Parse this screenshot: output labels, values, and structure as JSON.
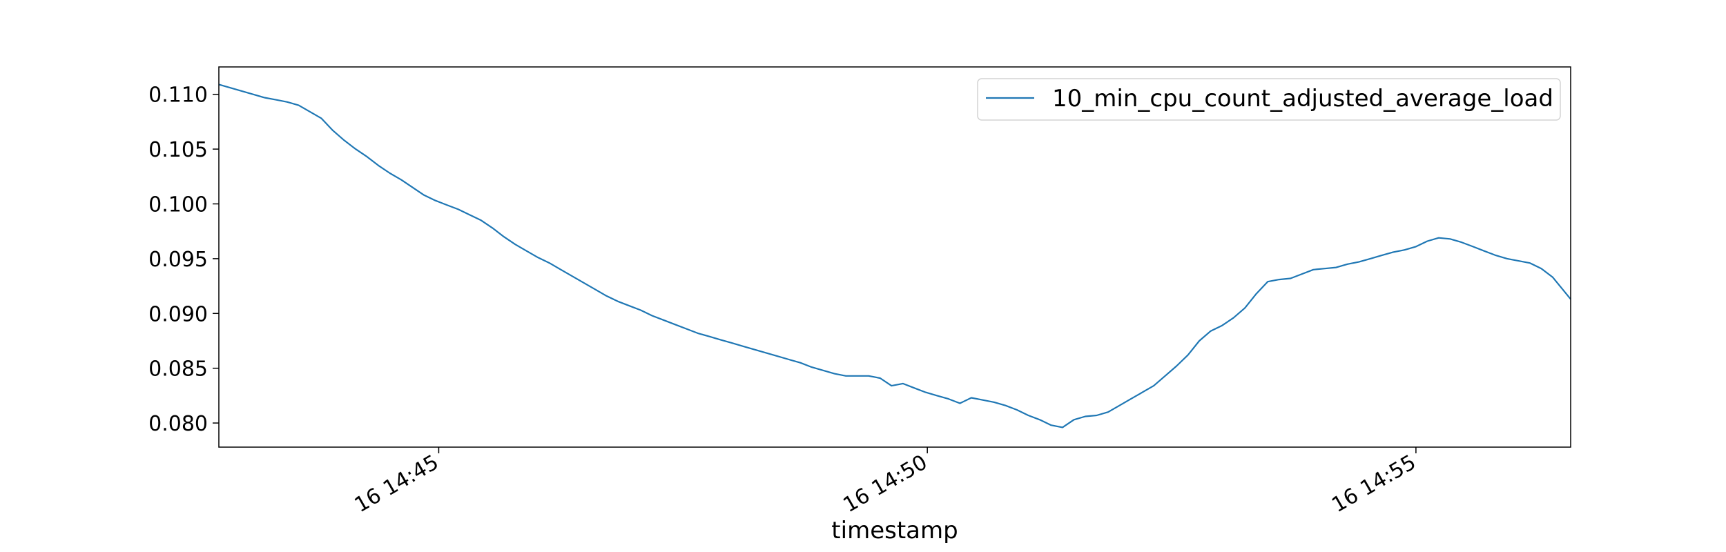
{
  "chart_data": {
    "type": "line",
    "title": "",
    "xlabel": "timestamp",
    "ylabel": "",
    "x_range": [
      "14:42:45",
      "14:56:35"
    ],
    "ylim": [
      0.0778,
      0.1125
    ],
    "x_ticks": [
      {
        "time": "14:45:00",
        "label": "16 14:45"
      },
      {
        "time": "14:50:00",
        "label": "16 14:50"
      },
      {
        "time": "14:55:00",
        "label": "16 14:55"
      }
    ],
    "y_ticks": [
      {
        "value": 0.08,
        "label": "0.080"
      },
      {
        "value": 0.085,
        "label": "0.085"
      },
      {
        "value": 0.09,
        "label": "0.090"
      },
      {
        "value": 0.095,
        "label": "0.095"
      },
      {
        "value": 0.1,
        "label": "0.100"
      },
      {
        "value": 0.105,
        "label": "0.105"
      },
      {
        "value": 0.11,
        "label": "0.110"
      }
    ],
    "grid": false,
    "legend_position": "top-right",
    "series": [
      {
        "name": "10_min_cpu_count_adjusted_average_load",
        "color": "#1f77b4",
        "points": [
          [
            "14:42:45",
            0.1109
          ],
          [
            "14:42:52",
            0.1106
          ],
          [
            "14:42:59",
            0.1103
          ],
          [
            "14:43:06",
            0.11
          ],
          [
            "14:43:13",
            0.1097
          ],
          [
            "14:43:20",
            0.1095
          ],
          [
            "14:43:27",
            0.1093
          ],
          [
            "14:43:34",
            0.109
          ],
          [
            "14:43:41",
            0.1084
          ],
          [
            "14:43:48",
            0.1078
          ],
          [
            "14:43:55",
            0.1067
          ],
          [
            "14:44:02",
            0.1058
          ],
          [
            "14:44:09",
            0.105
          ],
          [
            "14:44:16",
            0.1043
          ],
          [
            "14:44:23",
            0.1035
          ],
          [
            "14:44:30",
            0.1028
          ],
          [
            "14:44:37",
            0.1022
          ],
          [
            "14:44:44",
            0.1015
          ],
          [
            "14:44:51",
            0.1008
          ],
          [
            "14:44:58",
            0.1003
          ],
          [
            "14:45:05",
            0.0999
          ],
          [
            "14:45:12",
            0.0995
          ],
          [
            "14:45:19",
            0.099
          ],
          [
            "14:45:26",
            0.0985
          ],
          [
            "14:45:33",
            0.0978
          ],
          [
            "14:45:40",
            0.097
          ],
          [
            "14:45:47",
            0.0963
          ],
          [
            "14:45:54",
            0.0957
          ],
          [
            "14:46:01",
            0.0951
          ],
          [
            "14:46:08",
            0.0946
          ],
          [
            "14:46:15",
            0.094
          ],
          [
            "14:46:22",
            0.0934
          ],
          [
            "14:46:29",
            0.0928
          ],
          [
            "14:46:36",
            0.0922
          ],
          [
            "14:46:43",
            0.0916
          ],
          [
            "14:46:50",
            0.0911
          ],
          [
            "14:46:57",
            0.0907
          ],
          [
            "14:47:04",
            0.0903
          ],
          [
            "14:47:11",
            0.0898
          ],
          [
            "14:47:18",
            0.0894
          ],
          [
            "14:47:25",
            0.089
          ],
          [
            "14:47:32",
            0.0886
          ],
          [
            "14:47:39",
            0.0882
          ],
          [
            "14:47:46",
            0.0879
          ],
          [
            "14:47:53",
            0.0876
          ],
          [
            "14:48:00",
            0.0873
          ],
          [
            "14:48:07",
            0.087
          ],
          [
            "14:48:14",
            0.0867
          ],
          [
            "14:48:21",
            0.0864
          ],
          [
            "14:48:28",
            0.0861
          ],
          [
            "14:48:35",
            0.0858
          ],
          [
            "14:48:42",
            0.0855
          ],
          [
            "14:48:49",
            0.0851
          ],
          [
            "14:48:56",
            0.0848
          ],
          [
            "14:49:03",
            0.0845
          ],
          [
            "14:49:10",
            0.0843
          ],
          [
            "14:49:17",
            0.0843
          ],
          [
            "14:49:24",
            0.0843
          ],
          [
            "14:49:31",
            0.0841
          ],
          [
            "14:49:38",
            0.0834
          ],
          [
            "14:49:45",
            0.0836
          ],
          [
            "14:49:52",
            0.0832
          ],
          [
            "14:49:59",
            0.0828
          ],
          [
            "14:50:06",
            0.0825
          ],
          [
            "14:50:13",
            0.0822
          ],
          [
            "14:50:20",
            0.0818
          ],
          [
            "14:50:27",
            0.0823
          ],
          [
            "14:50:34",
            0.0821
          ],
          [
            "14:50:41",
            0.0819
          ],
          [
            "14:50:48",
            0.0816
          ],
          [
            "14:50:55",
            0.0812
          ],
          [
            "14:51:02",
            0.0807
          ],
          [
            "14:51:09",
            0.0803
          ],
          [
            "14:51:16",
            0.0798
          ],
          [
            "14:51:23",
            0.0796
          ],
          [
            "14:51:30",
            0.0803
          ],
          [
            "14:51:37",
            0.0806
          ],
          [
            "14:51:44",
            0.0807
          ],
          [
            "14:51:51",
            0.081
          ],
          [
            "14:51:58",
            0.0816
          ],
          [
            "14:52:05",
            0.0822
          ],
          [
            "14:52:12",
            0.0828
          ],
          [
            "14:52:19",
            0.0834
          ],
          [
            "14:52:26",
            0.0843
          ],
          [
            "14:52:33",
            0.0852
          ],
          [
            "14:52:40",
            0.0862
          ],
          [
            "14:52:47",
            0.0875
          ],
          [
            "14:52:54",
            0.0884
          ],
          [
            "14:53:01",
            0.0889
          ],
          [
            "14:53:08",
            0.0896
          ],
          [
            "14:53:15",
            0.0905
          ],
          [
            "14:53:22",
            0.0918
          ],
          [
            "14:53:29",
            0.0929
          ],
          [
            "14:53:36",
            0.0931
          ],
          [
            "14:53:43",
            0.0932
          ],
          [
            "14:53:50",
            0.0936
          ],
          [
            "14:53:57",
            0.094
          ],
          [
            "14:54:04",
            0.0941
          ],
          [
            "14:54:11",
            0.0942
          ],
          [
            "14:54:18",
            0.0945
          ],
          [
            "14:54:25",
            0.0947
          ],
          [
            "14:54:32",
            0.095
          ],
          [
            "14:54:39",
            0.0953
          ],
          [
            "14:54:46",
            0.0956
          ],
          [
            "14:54:53",
            0.0958
          ],
          [
            "14:55:00",
            0.0961
          ],
          [
            "14:55:07",
            0.0966
          ],
          [
            "14:55:14",
            0.0969
          ],
          [
            "14:55:21",
            0.0968
          ],
          [
            "14:55:28",
            0.0965
          ],
          [
            "14:55:35",
            0.0961
          ],
          [
            "14:55:42",
            0.0957
          ],
          [
            "14:55:49",
            0.0953
          ],
          [
            "14:55:56",
            0.095
          ],
          [
            "14:56:03",
            0.0948
          ],
          [
            "14:56:10",
            0.0946
          ],
          [
            "14:56:17",
            0.0941
          ],
          [
            "14:56:24",
            0.0933
          ],
          [
            "14:56:35",
            0.0913
          ]
        ]
      }
    ]
  }
}
